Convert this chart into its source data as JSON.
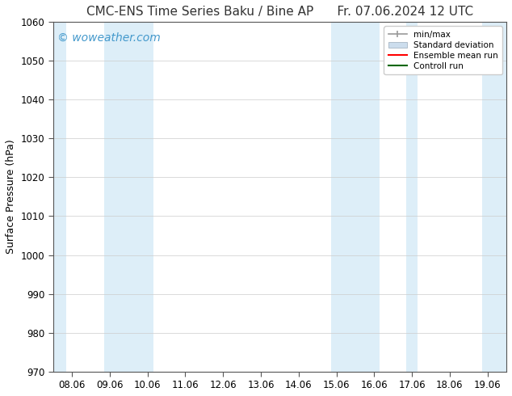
{
  "title_left": "CMC-ENS Time Series Baku / Bine AP",
  "title_right": "Fr. 07.06.2024 12 UTC",
  "ylabel": "Surface Pressure (hPa)",
  "ylim": [
    970,
    1060
  ],
  "yticks": [
    970,
    980,
    990,
    1000,
    1010,
    1020,
    1030,
    1040,
    1050,
    1060
  ],
  "xlabels": [
    "08.06",
    "09.06",
    "10.06",
    "11.06",
    "12.06",
    "13.06",
    "14.06",
    "15.06",
    "16.06",
    "17.06",
    "18.06",
    "19.06"
  ],
  "band_color": "#ddeef8",
  "watermark_text": "© woweather.com",
  "watermark_color": "#4499cc",
  "background_color": "#ffffff",
  "plot_bg_color": "#ffffff",
  "legend_labels": [
    "min/max",
    "Standard deviation",
    "Ensemble mean run",
    "Controll run"
  ],
  "legend_colors": [
    "#aaaaaa",
    "#ccdded",
    "#ff0000",
    "#006600"
  ],
  "title_fontsize": 11,
  "axis_fontsize": 9,
  "tick_fontsize": 8.5,
  "watermark_fontsize": 10
}
